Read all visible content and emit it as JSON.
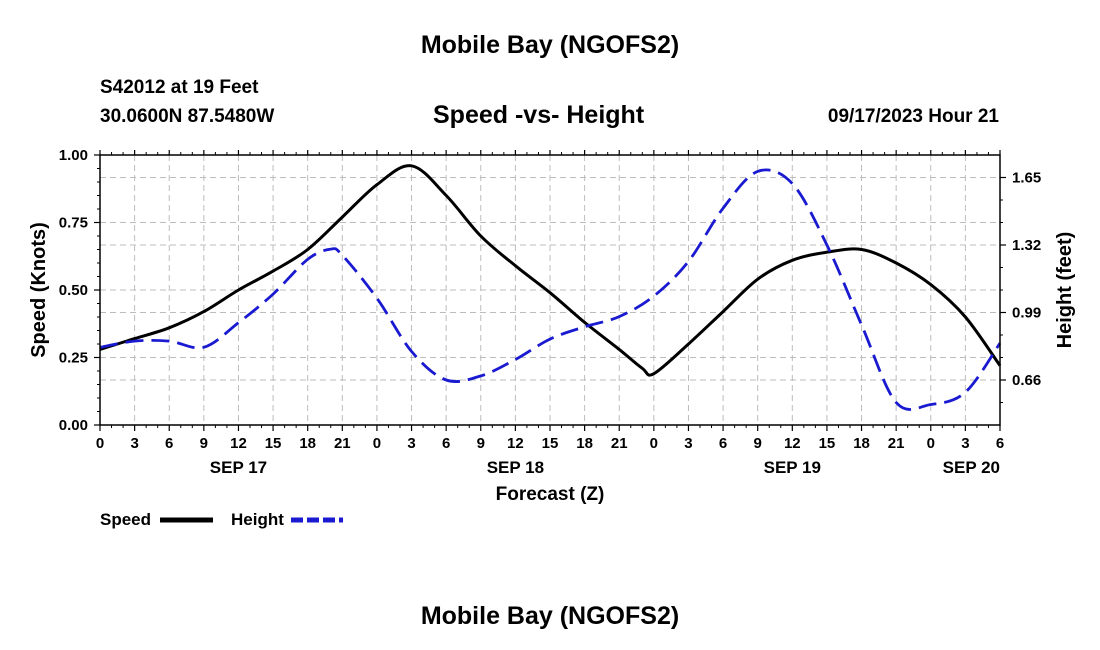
{
  "header": {
    "title_top": "Mobile Bay (NGOFS2)",
    "station_line1": "S42012 at 19 Feet",
    "station_line2": "30.0600N  87.5480W",
    "chart_title": "Speed -vs- Height",
    "timestamp": "09/17/2023 Hour 21",
    "title_bottom": "Mobile Bay (NGOFS2)"
  },
  "legend": {
    "speed_label": "Speed",
    "height_label": "Height"
  },
  "chart_data": {
    "type": "line",
    "title": "Speed -vs- Height",
    "xlabel": "Forecast (Z)",
    "ylabel": "Speed (Knots)",
    "y2label": "Height (feet)",
    "x_unit": "hours since SEP 17 00Z",
    "xlim": [
      0,
      78
    ],
    "ylim": [
      0,
      1.0
    ],
    "y2lim": [
      0.44,
      1.76
    ],
    "x_ticks": [
      0,
      3,
      6,
      9,
      12,
      15,
      18,
      21,
      24,
      27,
      30,
      33,
      36,
      39,
      42,
      45,
      48,
      51,
      54,
      57,
      60,
      63,
      66,
      69,
      72,
      75,
      78
    ],
    "x_tick_labels": [
      "0",
      "3",
      "6",
      "9",
      "12",
      "15",
      "18",
      "21",
      "0",
      "3",
      "6",
      "9",
      "12",
      "15",
      "18",
      "21",
      "0",
      "3",
      "6",
      "9",
      "12",
      "15",
      "18",
      "21",
      "0",
      "3",
      "6"
    ],
    "date_labels": [
      {
        "x": 12,
        "label": "SEP 17"
      },
      {
        "x": 36,
        "label": "SEP 18"
      },
      {
        "x": 60,
        "label": "SEP 19"
      },
      {
        "x": 78,
        "label": "SEP 20"
      }
    ],
    "y_ticks": [
      0.0,
      0.25,
      0.5,
      0.75,
      1.0
    ],
    "y_tick_labels": [
      "0.00",
      "0.25",
      "0.50",
      "0.75",
      "1.00"
    ],
    "y2_ticks": [
      0.66,
      0.99,
      1.32,
      1.65
    ],
    "y2_tick_labels": [
      "0.66",
      "0.99",
      "1.32",
      "1.65"
    ],
    "grid": true,
    "legend_position": "bottom-left",
    "series": [
      {
        "name": "Speed",
        "axis": "left",
        "color": "#000000",
        "dash": "solid",
        "x": [
          0,
          3,
          6,
          9,
          12,
          15,
          18,
          21,
          24,
          27,
          30,
          33,
          36,
          39,
          42,
          45,
          47,
          48,
          51,
          54,
          57,
          60,
          63,
          66,
          69,
          72,
          75,
          78
        ],
        "values": [
          0.28,
          0.32,
          0.36,
          0.42,
          0.5,
          0.57,
          0.65,
          0.77,
          0.89,
          0.96,
          0.85,
          0.7,
          0.59,
          0.49,
          0.38,
          0.28,
          0.21,
          0.19,
          0.3,
          0.42,
          0.54,
          0.61,
          0.64,
          0.65,
          0.6,
          0.52,
          0.4,
          0.22
        ]
      },
      {
        "name": "Height",
        "axis": "right",
        "color": "#1a1ad0",
        "dash": "dashed",
        "x": [
          0,
          3,
          6,
          9,
          12,
          15,
          18,
          20,
          21,
          24,
          27,
          30,
          33,
          36,
          39,
          42,
          45,
          48,
          51,
          54,
          57,
          60,
          63,
          66,
          69,
          72,
          75,
          78
        ],
        "values": [
          0.82,
          0.85,
          0.85,
          0.82,
          0.94,
          1.08,
          1.25,
          1.3,
          1.27,
          1.06,
          0.8,
          0.66,
          0.68,
          0.76,
          0.86,
          0.92,
          0.97,
          1.07,
          1.24,
          1.5,
          1.68,
          1.62,
          1.32,
          0.93,
          0.55,
          0.54,
          0.6,
          0.84
        ]
      }
    ]
  }
}
